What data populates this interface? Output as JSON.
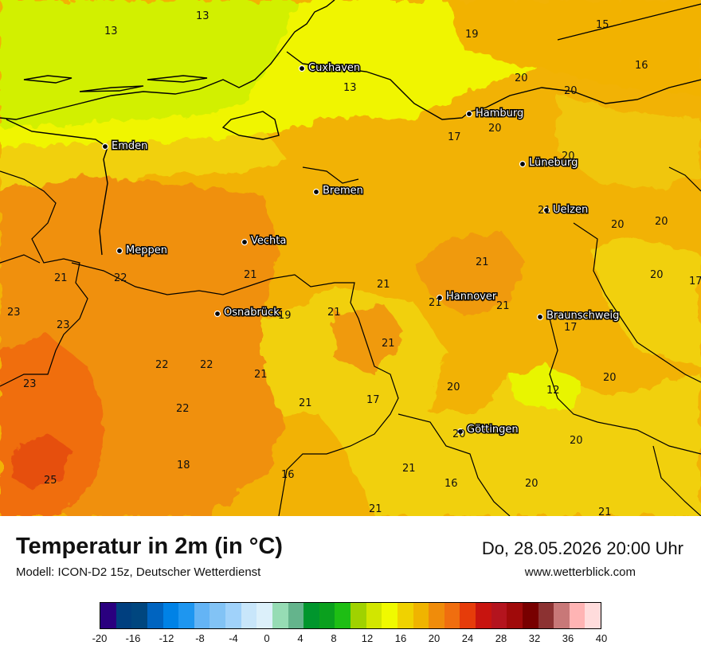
{
  "title": "Temperatur in 2m (in °C)",
  "model": "Modell: ICON-D2 15z, Deutscher Wetterdienst",
  "datetime": "Do, 28.05.2026 20:00 Uhr",
  "website": "www.wetterblick.com",
  "cities": [
    {
      "name": "Cuxhaven"
    },
    {
      "name": "Hamburg"
    },
    {
      "name": "Emden"
    },
    {
      "name": "Lüneburg"
    },
    {
      "name": "Bremen"
    },
    {
      "name": "Uelzen"
    },
    {
      "name": "Meppen"
    },
    {
      "name": "Vechta"
    },
    {
      "name": "Hannover"
    },
    {
      "name": "Osnabrück"
    },
    {
      "name": "Braunschweig"
    },
    {
      "name": "Göttingen"
    }
  ],
  "temperature_labels": [
    "13",
    "13",
    "19",
    "15",
    "16",
    "20",
    "20",
    "13",
    "20",
    "17",
    "20",
    "21",
    "20",
    "20",
    "21",
    "22",
    "21",
    "21",
    "17",
    "23",
    "23",
    "21",
    "19",
    "21",
    "21",
    "20",
    "17",
    "21",
    "22",
    "22",
    "21",
    "21",
    "23",
    "17",
    "20",
    "12",
    "20",
    "22",
    "21",
    "20",
    "20",
    "18",
    "16",
    "21",
    "16",
    "20",
    "25",
    "21",
    "21"
  ],
  "legend": {
    "colors": [
      "#2a007f",
      "#003f7f",
      "#00467f",
      "#0064c0",
      "#0082e6",
      "#1e96f0",
      "#64b4f5",
      "#82c3f5",
      "#a0d2fa",
      "#c8e6fa",
      "#dcf0fa",
      "#96dcb4",
      "#64b48c",
      "#00962d",
      "#0aa01e",
      "#1ebe14",
      "#a0d200",
      "#d2e600",
      "#f0fa00",
      "#f0d200",
      "#f0b400",
      "#f08c0a",
      "#f06e0f",
      "#e63c0a",
      "#c8140f",
      "#b4141e",
      "#a00a0a",
      "#780000",
      "#8c3232",
      "#c87878",
      "#ffb4b4",
      "#ffdcdc"
    ],
    "ticks": [
      "-20",
      "-16",
      "-12",
      "-8",
      "-4",
      "0",
      "4",
      "8",
      "12",
      "16",
      "20",
      "24",
      "28",
      "32",
      "36",
      "40"
    ]
  }
}
